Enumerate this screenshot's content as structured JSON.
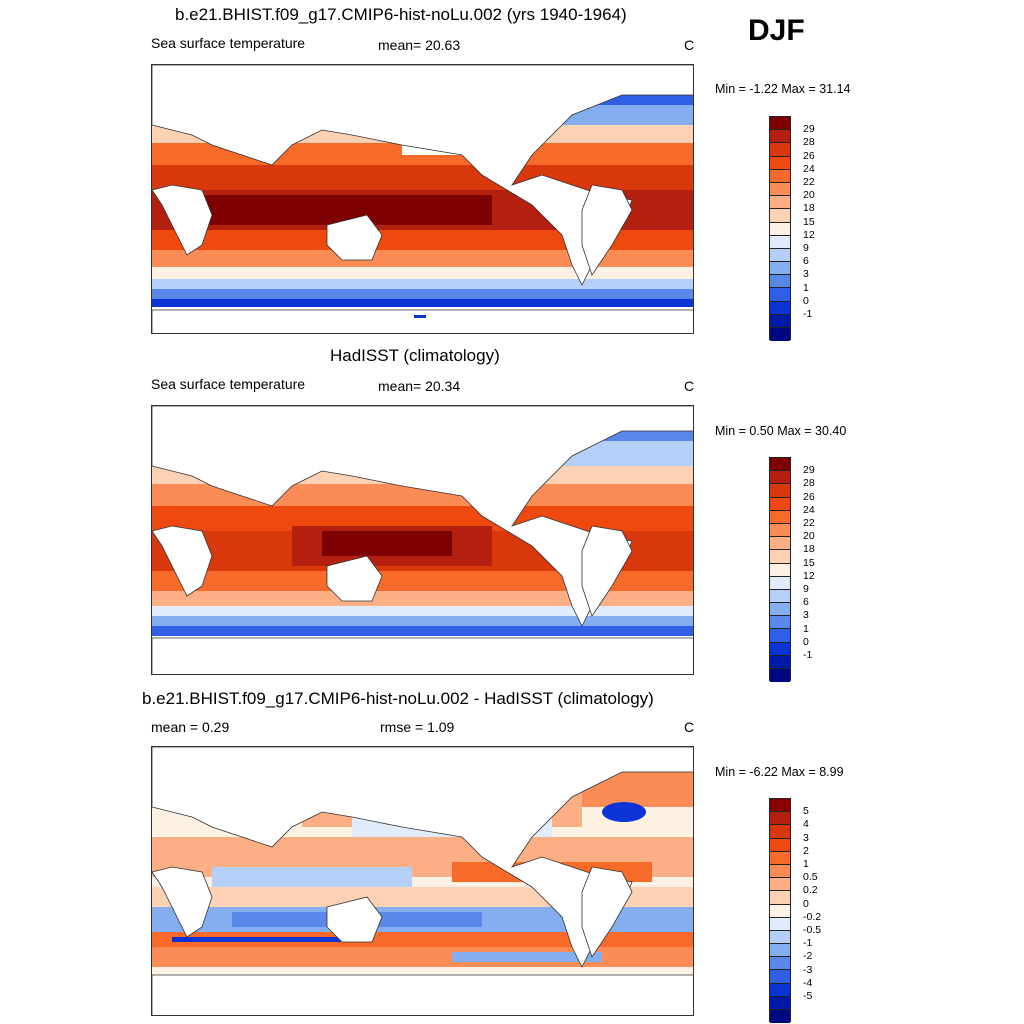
{
  "season": "DJF",
  "panels": [
    {
      "title": "b.e21.BHIST.f09_g17.CMIP6-hist-noLu.002 (yrs 1940-1964)",
      "left": "Sea surface temperature",
      "center": "mean=  20.63",
      "units": "C",
      "minmax": "Min =  -1.22 Max =  31.14",
      "colorbar_labels": [
        "29",
        "28",
        "26",
        "24",
        "22",
        "20",
        "18",
        "15",
        "12",
        "9",
        "6",
        "3",
        "1",
        "0",
        "-1"
      ],
      "colors": [
        "#7f0000",
        "#b3200f",
        "#d8380c",
        "#ee4a10",
        "#f76a2a",
        "#fb8c55",
        "#fcae85",
        "#fdd2b4",
        "#fdf1e4",
        "#e0ecfb",
        "#b4cff8",
        "#84aef0",
        "#5988ea",
        "#2f5fe5",
        "#0c33d6",
        "#001aa8",
        "#000880"
      ]
    },
    {
      "title": "HadISST (climatology)",
      "left": "Sea surface temperature",
      "center": "mean=  20.34",
      "units": "C",
      "minmax": "Min =   0.50 Max =  30.40",
      "colorbar_labels": [
        "29",
        "28",
        "26",
        "24",
        "22",
        "20",
        "18",
        "15",
        "12",
        "9",
        "6",
        "3",
        "1",
        "0",
        "-1"
      ],
      "colors": [
        "#7f0000",
        "#b3200f",
        "#d8380c",
        "#ee4a10",
        "#f76a2a",
        "#fb8c55",
        "#fcae85",
        "#fdd2b4",
        "#fdf1e4",
        "#e0ecfb",
        "#b4cff8",
        "#84aef0",
        "#5988ea",
        "#2f5fe5",
        "#0c33d6",
        "#001aa8",
        "#000880"
      ]
    },
    {
      "title": "b.e21.BHIST.f09_g17.CMIP6-hist-noLu.002 - HadISST (climatology)",
      "left": "mean =   0.29",
      "center": "rmse =   1.09",
      "units": "C",
      "minmax": "Min =  -6.22 Max =   8.99",
      "colorbar_labels": [
        "5",
        "4",
        "3",
        "2",
        "1",
        "0.5",
        "0.2",
        "0",
        "-0.2",
        "-0.5",
        "-1",
        "-2",
        "-3",
        "-4",
        "-5"
      ],
      "colors": [
        "#8b0000",
        "#b3200f",
        "#d8380c",
        "#ee4a10",
        "#f76a2a",
        "#fb8c55",
        "#fcae85",
        "#fdd2b4",
        "#fdf1e4",
        "#e0ecfb",
        "#b4cff8",
        "#84aef0",
        "#5988ea",
        "#2f5fe5",
        "#0c33d6",
        "#001aa8",
        "#000880"
      ]
    }
  ]
}
